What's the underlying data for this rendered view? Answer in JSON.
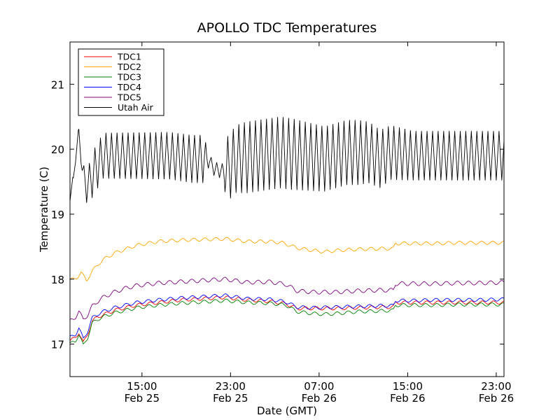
{
  "chart_data": {
    "type": "line",
    "title": "APOLLO TDC Temperatures",
    "xlabel": "Date (GMT)",
    "ylabel": "Temperature (C)",
    "x_unit": "hours since Feb 25 08:30 GMT",
    "xlim": [
      0,
      39.2
    ],
    "ylim": [
      16.5,
      21.65
    ],
    "y_ticks": [
      17,
      18,
      19,
      20,
      21
    ],
    "y_tick_labels": [
      "17",
      "18",
      "19",
      "20",
      "21"
    ],
    "x_ticks": [
      {
        "x": 6.5,
        "time": "15:00",
        "date": "Feb 25"
      },
      {
        "x": 14.5,
        "time": "23:00",
        "date": "Feb 25"
      },
      {
        "x": 22.5,
        "time": "07:00",
        "date": "Feb 26"
      },
      {
        "x": 30.5,
        "time": "15:00",
        "date": "Feb 26"
      },
      {
        "x": 38.5,
        "time": "23:00",
        "date": "Feb 26"
      }
    ],
    "legend_position": "top-left",
    "series": [
      {
        "name": "TDC1",
        "color": "#ff0000",
        "points": [
          [
            0,
            17.05
          ],
          [
            0.5,
            17.1
          ],
          [
            0.8,
            17.18
          ],
          [
            1.2,
            17.02
          ],
          [
            1.6,
            17.15
          ],
          [
            2,
            17.35
          ],
          [
            2.5,
            17.42
          ],
          [
            3,
            17.45
          ],
          [
            4,
            17.52
          ],
          [
            5,
            17.56
          ],
          [
            6,
            17.6
          ],
          [
            7,
            17.62
          ],
          [
            8,
            17.64
          ],
          [
            10,
            17.68
          ],
          [
            12,
            17.7
          ],
          [
            14,
            17.72
          ],
          [
            16,
            17.68
          ],
          [
            18,
            17.66
          ],
          [
            19.5,
            17.62
          ],
          [
            20.5,
            17.55
          ],
          [
            22,
            17.55
          ],
          [
            24,
            17.55
          ],
          [
            26,
            17.56
          ],
          [
            28,
            17.57
          ],
          [
            29.2,
            17.57
          ],
          [
            29.4,
            17.64
          ],
          [
            31,
            17.64
          ],
          [
            33,
            17.64
          ],
          [
            35,
            17.64
          ],
          [
            37,
            17.64
          ],
          [
            39.2,
            17.64
          ]
        ],
        "wiggle_amp": 0.025,
        "wiggle_period": 1.0
      },
      {
        "name": "TDC2",
        "color": "#ffa500",
        "points": [
          [
            0,
            17.98
          ],
          [
            0.6,
            18.02
          ],
          [
            1,
            18.1
          ],
          [
            1.5,
            17.98
          ],
          [
            2,
            18.12
          ],
          [
            2.5,
            18.22
          ],
          [
            3,
            18.3
          ],
          [
            4,
            18.4
          ],
          [
            5,
            18.46
          ],
          [
            6,
            18.52
          ],
          [
            7,
            18.55
          ],
          [
            8,
            18.58
          ],
          [
            10,
            18.6
          ],
          [
            12,
            18.61
          ],
          [
            14,
            18.62
          ],
          [
            16,
            18.58
          ],
          [
            18,
            18.58
          ],
          [
            19.2,
            18.56
          ],
          [
            20.5,
            18.48
          ],
          [
            22,
            18.44
          ],
          [
            23,
            18.42
          ],
          [
            24,
            18.44
          ],
          [
            26,
            18.46
          ],
          [
            28,
            18.47
          ],
          [
            29.2,
            18.47
          ],
          [
            29.4,
            18.55
          ],
          [
            31,
            18.55
          ],
          [
            33,
            18.55
          ],
          [
            35,
            18.56
          ],
          [
            37,
            18.56
          ],
          [
            39.2,
            18.56
          ]
        ],
        "wiggle_amp": 0.025,
        "wiggle_period": 1.0
      },
      {
        "name": "TDC3",
        "color": "#008000",
        "points": [
          [
            0,
            17.0
          ],
          [
            0.5,
            17.05
          ],
          [
            0.8,
            17.15
          ],
          [
            1.2,
            16.98
          ],
          [
            1.6,
            17.1
          ],
          [
            2,
            17.32
          ],
          [
            2.5,
            17.38
          ],
          [
            3,
            17.42
          ],
          [
            4,
            17.48
          ],
          [
            5,
            17.52
          ],
          [
            6,
            17.56
          ],
          [
            7,
            17.58
          ],
          [
            8,
            17.6
          ],
          [
            10,
            17.63
          ],
          [
            12,
            17.65
          ],
          [
            14,
            17.67
          ],
          [
            16,
            17.64
          ],
          [
            18,
            17.63
          ],
          [
            19.5,
            17.6
          ],
          [
            20.5,
            17.5
          ],
          [
            22,
            17.47
          ],
          [
            23,
            17.46
          ],
          [
            24,
            17.47
          ],
          [
            26,
            17.5
          ],
          [
            28,
            17.51
          ],
          [
            29.2,
            17.52
          ],
          [
            29.4,
            17.6
          ],
          [
            31,
            17.6
          ],
          [
            33,
            17.6
          ],
          [
            35,
            17.61
          ],
          [
            37,
            17.61
          ],
          [
            39.2,
            17.61
          ]
        ],
        "wiggle_amp": 0.025,
        "wiggle_period": 1.0
      },
      {
        "name": "TDC4",
        "color": "#0000ff",
        "points": [
          [
            0,
            17.1
          ],
          [
            0.5,
            17.15
          ],
          [
            0.8,
            17.25
          ],
          [
            1.2,
            17.08
          ],
          [
            1.6,
            17.2
          ],
          [
            2,
            17.4
          ],
          [
            2.5,
            17.46
          ],
          [
            3,
            17.5
          ],
          [
            4,
            17.56
          ],
          [
            5,
            17.6
          ],
          [
            6,
            17.64
          ],
          [
            7,
            17.66
          ],
          [
            8,
            17.68
          ],
          [
            10,
            17.71
          ],
          [
            12,
            17.73
          ],
          [
            14,
            17.75
          ],
          [
            16,
            17.7
          ],
          [
            18,
            17.69
          ],
          [
            19.5,
            17.65
          ],
          [
            20.5,
            17.57
          ],
          [
            22,
            17.56
          ],
          [
            24,
            17.57
          ],
          [
            26,
            17.58
          ],
          [
            28,
            17.59
          ],
          [
            29.2,
            17.59
          ],
          [
            29.4,
            17.67
          ],
          [
            31,
            17.67
          ],
          [
            33,
            17.68
          ],
          [
            35,
            17.68
          ],
          [
            37,
            17.68
          ],
          [
            39.2,
            17.69
          ]
        ],
        "wiggle_amp": 0.025,
        "wiggle_period": 1.0
      },
      {
        "name": "TDC5",
        "color": "#800080",
        "points": [
          [
            0,
            17.35
          ],
          [
            0.5,
            17.42
          ],
          [
            0.8,
            17.5
          ],
          [
            1.2,
            17.38
          ],
          [
            1.6,
            17.45
          ],
          [
            2,
            17.58
          ],
          [
            2.5,
            17.66
          ],
          [
            3,
            17.72
          ],
          [
            4,
            17.8
          ],
          [
            5,
            17.86
          ],
          [
            6,
            17.9
          ],
          [
            7,
            17.92
          ],
          [
            8,
            17.94
          ],
          [
            10,
            17.96
          ],
          [
            12,
            17.98
          ],
          [
            14,
            18.0
          ],
          [
            16,
            17.95
          ],
          [
            18,
            17.96
          ],
          [
            19.5,
            17.92
          ],
          [
            20.5,
            17.82
          ],
          [
            22,
            17.8
          ],
          [
            24,
            17.8
          ],
          [
            26,
            17.82
          ],
          [
            28,
            17.83
          ],
          [
            29.2,
            17.83
          ],
          [
            29.4,
            17.93
          ],
          [
            31,
            17.93
          ],
          [
            33,
            17.93
          ],
          [
            35,
            17.94
          ],
          [
            37,
            17.94
          ],
          [
            39.2,
            17.95
          ]
        ],
        "wiggle_amp": 0.03,
        "wiggle_period": 1.0
      },
      {
        "name": "Utah Air",
        "color": "#000000",
        "points": [
          [
            0,
            19.3
          ],
          [
            0.3,
            19.5
          ],
          [
            0.5,
            19.9
          ],
          [
            0.8,
            20.25
          ],
          [
            1.1,
            19.7
          ],
          [
            1.5,
            19.4
          ],
          [
            2,
            19.6
          ],
          [
            3,
            19.9
          ],
          [
            5,
            19.9
          ],
          [
            7,
            19.9
          ],
          [
            9,
            19.9
          ],
          [
            11,
            19.85
          ],
          [
            12.5,
            19.85
          ],
          [
            13,
            19.7
          ],
          [
            14,
            19.65
          ],
          [
            15,
            19.85
          ],
          [
            17,
            19.9
          ],
          [
            19,
            19.95
          ],
          [
            21,
            19.9
          ],
          [
            23,
            19.85
          ],
          [
            25,
            19.95
          ],
          [
            27,
            19.95
          ],
          [
            28,
            19.85
          ],
          [
            29,
            19.95
          ],
          [
            31,
            19.9
          ],
          [
            33,
            19.9
          ],
          [
            35,
            19.9
          ],
          [
            37,
            19.9
          ],
          [
            39.2,
            19.9
          ]
        ],
        "oscillation_amplitude": [
          [
            0,
            0.1
          ],
          [
            1,
            0.1
          ],
          [
            2,
            0.35
          ],
          [
            12,
            0.37
          ],
          [
            12.6,
            0.1
          ],
          [
            13.8,
            0.12
          ],
          [
            14.2,
            0.5
          ],
          [
            16,
            0.55
          ],
          [
            18,
            0.55
          ],
          [
            20,
            0.55
          ],
          [
            23,
            0.5
          ],
          [
            26,
            0.5
          ],
          [
            29,
            0.42
          ],
          [
            31,
            0.38
          ],
          [
            39.2,
            0.38
          ]
        ],
        "oscillation_period_hours": 0.5
      }
    ]
  }
}
